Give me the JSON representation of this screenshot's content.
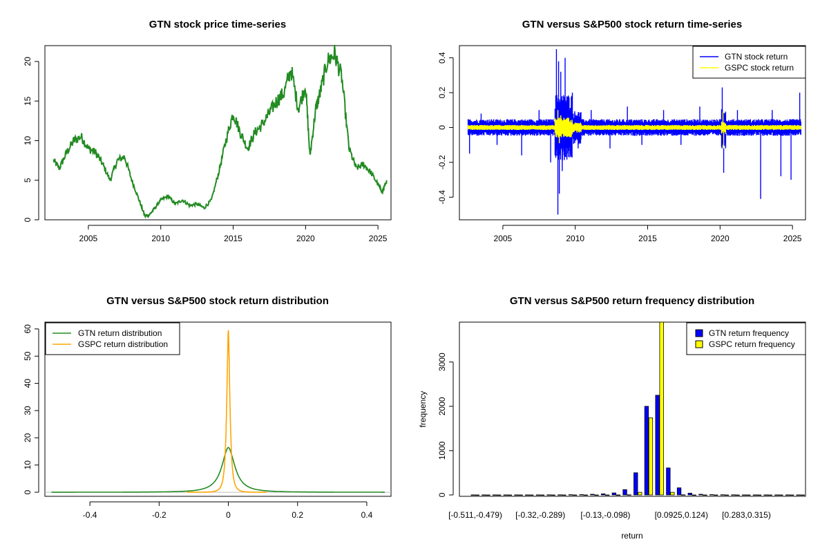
{
  "chart_data": [
    {
      "type": "line",
      "title": "GTN stock price time-series",
      "xlabel": "",
      "ylabel": "",
      "xlim": [
        2002.0,
        2025.9
      ],
      "ylim": [
        0,
        22
      ],
      "xticks": [
        2005,
        2010,
        2015,
        2020,
        2025
      ],
      "yticks": [
        0,
        5,
        10,
        15,
        20
      ],
      "grid": false,
      "legend": null,
      "series": [
        {
          "color": "#228b22",
          "x": [
            2002.6,
            2003.0,
            2003.5,
            2004.0,
            2004.5,
            2005.0,
            2005.5,
            2006.0,
            2006.5,
            2007.0,
            2007.5,
            2008.0,
            2008.5,
            2008.9,
            2009.2,
            2009.6,
            2010.0,
            2010.5,
            2011.0,
            2011.5,
            2012.0,
            2012.5,
            2013.0,
            2013.5,
            2014.0,
            2014.5,
            2015.0,
            2015.5,
            2016.0,
            2016.5,
            2017.0,
            2017.5,
            2018.0,
            2018.5,
            2019.0,
            2019.5,
            2020.0,
            2020.3,
            2020.7,
            2021.0,
            2021.5,
            2022.0,
            2022.5,
            2023.0,
            2023.5,
            2024.0,
            2024.5,
            2025.0,
            2025.3,
            2025.6
          ],
          "y": [
            7.5,
            6.5,
            8.5,
            10.0,
            10.5,
            9.0,
            8.5,
            7.0,
            5.0,
            7.5,
            8.0,
            5.0,
            2.5,
            0.5,
            0.6,
            1.5,
            2.5,
            3.0,
            2.0,
            2.5,
            1.8,
            2.0,
            1.5,
            2.5,
            6.0,
            10.0,
            13.5,
            11.0,
            9.0,
            11.0,
            12.0,
            13.5,
            15.0,
            16.0,
            19.0,
            14.0,
            17.0,
            8.0,
            14.0,
            16.0,
            20.0,
            21.0,
            18.0,
            9.0,
            6.5,
            7.0,
            6.0,
            4.5,
            3.5,
            5.0
          ]
        }
      ]
    },
    {
      "type": "line",
      "title": "GTN versus S&P500 stock return time-series",
      "xlabel": "",
      "ylabel": "",
      "xlim": [
        2002.0,
        2025.9
      ],
      "ylim": [
        -0.53,
        0.47
      ],
      "xticks": [
        2005,
        2010,
        2015,
        2020,
        2025
      ],
      "yticks": [
        -0.4,
        -0.2,
        0.0,
        0.2,
        0.4
      ],
      "grid": false,
      "legend_position": "top-right",
      "series": [
        {
          "name": "GTN stock return",
          "color": "#0000ff",
          "typical_band": 0.04,
          "spikes_x": [
            2002.7,
            2003.5,
            2004.6,
            2006.3,
            2007.5,
            2008.3,
            2008.7,
            2008.8,
            2008.85,
            2008.9,
            2009.0,
            2009.1,
            2009.3,
            2009.5,
            2009.8,
            2010.2,
            2011.1,
            2012.4,
            2013.6,
            2014.6,
            2016.1,
            2017.3,
            2018.6,
            2020.15,
            2020.25,
            2021.2,
            2022.8,
            2023.6,
            2024.2,
            2024.9,
            2025.5
          ],
          "spikes_y": [
            -0.15,
            0.08,
            -0.1,
            -0.16,
            0.1,
            -0.2,
            0.45,
            -0.5,
            0.38,
            -0.38,
            0.32,
            -0.25,
            0.4,
            -0.15,
            0.2,
            -0.12,
            0.1,
            -0.12,
            0.12,
            -0.1,
            0.1,
            -0.1,
            0.12,
            0.23,
            -0.26,
            0.1,
            -0.41,
            0.1,
            -0.28,
            -0.3,
            0.2
          ]
        },
        {
          "name": "GSPC stock return",
          "color": "#ffff00",
          "typical_band": 0.012,
          "spikes_x": [
            2008.8,
            2008.9,
            2009.0,
            2020.2,
            2020.25
          ],
          "spikes_y": [
            0.1,
            -0.09,
            0.07,
            0.09,
            -0.12
          ]
        }
      ]
    },
    {
      "type": "line",
      "title": "GTN versus S&P500 stock return distribution",
      "xlabel": "",
      "ylabel": "",
      "xlim": [
        -0.53,
        0.47
      ],
      "ylim": [
        -1.5,
        62.5
      ],
      "xticks": [
        -0.4,
        -0.2,
        0.0,
        0.2,
        0.4
      ],
      "yticks": [
        0,
        10,
        20,
        30,
        40,
        50,
        60
      ],
      "grid": false,
      "legend_position": "top-left",
      "series": [
        {
          "name": "GTN return distribution",
          "color": "#228b22",
          "peak": 16.5,
          "center": 0.0,
          "scale": 0.024,
          "range": [
            -0.511,
            0.452
          ]
        },
        {
          "name": "GSPC return distribution",
          "color": "#ffa500",
          "peak": 60.0,
          "center": 0.0,
          "scale": 0.0065,
          "range": [
            -0.12,
            0.11
          ]
        }
      ]
    },
    {
      "type": "bar",
      "title": "GTN versus S&P500 return frequency distribution",
      "xlabel": "return",
      "ylabel": "frequency",
      "ylim": [
        0,
        3900
      ],
      "yticks": [
        0,
        1000,
        2000,
        3000
      ],
      "grid": false,
      "legend_position": "top-right",
      "x_tick_labels": [
        "[-0.511,-0.479)",
        "[-0.32,-0.289)",
        "[-0.13,-0.098)",
        "[0.0925,0.124)",
        "[0.283,0.315)"
      ],
      "x_tick_bins": [
        0,
        6,
        12,
        19,
        25
      ],
      "series": [
        {
          "name": "GTN return frequency",
          "color": "#0000ff",
          "values": [
            1,
            1,
            1,
            1,
            1,
            2,
            2,
            3,
            3,
            6,
            8,
            15,
            25,
            45,
            120,
            500,
            2000,
            2250,
            610,
            160,
            40,
            15,
            8,
            5,
            3,
            2,
            1,
            1,
            1,
            1,
            1
          ]
        },
        {
          "name": "GSPC return frequency",
          "color": "#ffff00",
          "values": [
            0,
            0,
            0,
            0,
            0,
            0,
            0,
            0,
            0,
            0,
            0,
            0,
            0,
            0,
            3,
            60,
            1740,
            3900,
            60,
            3,
            0,
            0,
            0,
            0,
            0,
            0,
            0,
            0,
            0,
            0,
            0
          ]
        }
      ]
    }
  ]
}
